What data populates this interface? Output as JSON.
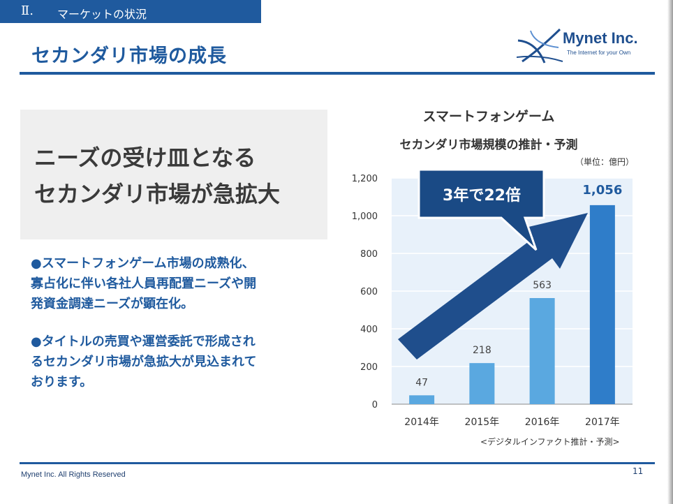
{
  "header": {
    "section_number": "Ⅱ.",
    "section_title": "マーケットの状況",
    "page_title": "セカンダリ市場の成長"
  },
  "logo": {
    "name": "Mynet Inc.",
    "tagline": "The Internet for your Own"
  },
  "headline": [
    "ニーズの受け皿となる",
    "セカンダリ市場が急拡大"
  ],
  "bullets": [
    [
      "●スマートフォンゲーム市場の成熟化、",
      "寡占化に伴い各社人員再配置ニーズや開",
      "発資金調達ニーズが顕在化。"
    ],
    [
      "●タイトルの売買や運営委託で形成され",
      "るセカンダリ市場が急拡大が見込まれて",
      "おります。"
    ]
  ],
  "chart_data": {
    "type": "bar",
    "title": "スマートフォンゲーム",
    "subtitle": "セカンダリ市場規模の推計・予測",
    "unit": "（単位：億円）",
    "categories": [
      "2014年",
      "2015年",
      "2016年",
      "2017年"
    ],
    "values": [
      47,
      218,
      563,
      1056
    ],
    "data_labels": [
      "47",
      "218",
      "563",
      "1,056"
    ],
    "ylim": [
      0,
      1200
    ],
    "yticks": [
      "0",
      "200",
      "400",
      "600",
      "800",
      "1,000",
      "1,200"
    ],
    "grid": true,
    "callout": "3年で22倍",
    "source": "<デジタルインファクト推計・予測>",
    "colors": {
      "bar": "#5aa8e0",
      "bar_highlight": "#2f7dc9",
      "arrow": "#1f4e8c",
      "callout": "#1a4a85"
    }
  },
  "footer": {
    "copyright": "Mynet Inc. All Rights Reserved",
    "page_number": "11"
  },
  "colors": {
    "brand": "#1f5a9e"
  }
}
